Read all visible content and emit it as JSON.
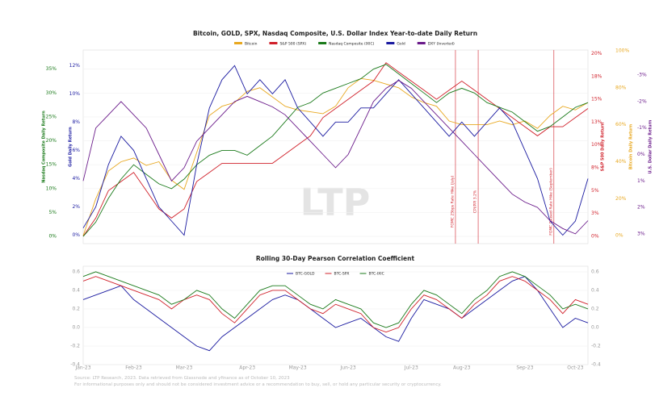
{
  "chart_data": [
    {
      "type": "line",
      "title": "Bitcoin, GOLD, SPX, Nasdaq Composite, U.S. Dollar Index Year-to-date Daily Return",
      "watermark": "LTP",
      "ylabel": "Nasdaq Composite Daily Return",
      "y2label": "Gold Daily Return",
      "y3label": "S&P 500 Daily Return",
      "y4label": "Bitcoin Daily Return",
      "y5label": "U.S. Dollar Daily Return",
      "ylim": [
        -1.5,
        39
      ],
      "yticks": [
        {
          "value": 0,
          "label": "0%"
        },
        {
          "value": 5,
          "label": "5%"
        },
        {
          "value": 10,
          "label": "10%"
        },
        {
          "value": 15,
          "label": "15%"
        },
        {
          "value": 20,
          "label": "20%"
        },
        {
          "value": 25,
          "label": "25%"
        },
        {
          "value": 30,
          "label": "30%"
        },
        {
          "value": 35,
          "label": "35%"
        }
      ],
      "y2lim": [
        -0.6,
        13.1
      ],
      "y2ticks": [
        {
          "value": 0,
          "label": "0%"
        },
        {
          "value": 2,
          "label": "2%"
        },
        {
          "value": 4,
          "label": "4%"
        },
        {
          "value": 6,
          "label": "6%"
        },
        {
          "value": 8,
          "label": "8%"
        },
        {
          "value": 10,
          "label": "10%"
        },
        {
          "value": 12,
          "label": "12%"
        }
      ],
      "y3lim": [
        -0.8,
        20.4
      ],
      "y3ticks": [
        {
          "value": 0,
          "label": "0%"
        },
        {
          "value": 2.5,
          "label": "3%"
        },
        {
          "value": 5,
          "label": "5%"
        },
        {
          "value": 7.5,
          "label": "8%"
        },
        {
          "value": 10,
          "label": "10%"
        },
        {
          "value": 12.5,
          "label": "13%"
        },
        {
          "value": 15,
          "label": "15%"
        },
        {
          "value": 17.5,
          "label": "18%"
        },
        {
          "value": 20,
          "label": "20%"
        }
      ],
      "y4lim": [
        -4.3,
        100.4
      ],
      "y4ticks": [
        {
          "value": 0,
          "label": "0%"
        },
        {
          "value": 20,
          "label": "20%"
        },
        {
          "value": 40,
          "label": "40%"
        },
        {
          "value": 60,
          "label": "60%"
        },
        {
          "value": 80,
          "label": "80%"
        },
        {
          "value": 100,
          "label": "100%"
        }
      ],
      "y5lim": [
        -3.95,
        3.37
      ],
      "y5_inverted": true,
      "y5ticks": [
        {
          "value": -3,
          "label": "-3%"
        },
        {
          "value": -2,
          "label": "-2%"
        },
        {
          "value": -1,
          "label": "-1%"
        },
        {
          "value": 0,
          "label": "0%"
        },
        {
          "value": 1,
          "label": "1%"
        },
        {
          "value": 2,
          "label": "2%"
        },
        {
          "value": 3,
          "label": "3%"
        }
      ],
      "grid": true,
      "series": [
        {
          "name": "Bitcoin",
          "color": "#e8a820",
          "axis": "y4",
          "values": [
            0,
            20,
            35,
            40,
            42,
            38,
            40,
            30,
            25,
            45,
            65,
            70,
            72,
            78,
            80,
            75,
            70,
            68,
            67,
            66,
            70,
            80,
            85,
            84,
            82,
            80,
            75,
            72,
            70,
            62,
            60,
            60,
            60,
            62,
            60,
            62,
            58,
            65,
            70,
            68,
            72
          ]
        },
        {
          "name": "S&P 500 (SPX)",
          "color": "#d0202a",
          "axis": "y3",
          "values": [
            0,
            2,
            5,
            6,
            7,
            5,
            3,
            2,
            3,
            6,
            7,
            8,
            8,
            8,
            8,
            8,
            9,
            10,
            11,
            13,
            14,
            15,
            16,
            17,
            19,
            18,
            17,
            16,
            15,
            16,
            17,
            16,
            15,
            14,
            13,
            12,
            11,
            12,
            12,
            13,
            14
          ]
        },
        {
          "name": "Nasdaq Composite (IXIC)",
          "color": "#1a7a1a",
          "axis": "y",
          "values": [
            0,
            3,
            8,
            12,
            15,
            13,
            11,
            10,
            12,
            15,
            17,
            18,
            18,
            17,
            19,
            21,
            24,
            27,
            28,
            30,
            31,
            32,
            33,
            35,
            36,
            34,
            32,
            30,
            28,
            30,
            31,
            30,
            28,
            27,
            26,
            24,
            22,
            23,
            25,
            27,
            28
          ]
        },
        {
          "name": "Gold",
          "color": "#1a1aa0",
          "axis": "y2",
          "values": [
            0.5,
            2,
            5,
            7,
            6,
            4,
            2,
            1,
            0,
            5,
            9,
            11,
            12,
            10,
            11,
            10,
            11,
            9,
            8,
            7,
            8,
            8,
            9,
            9,
            10,
            11,
            10,
            9,
            8,
            7,
            8,
            7,
            8,
            9,
            8,
            6,
            4,
            1,
            0,
            1,
            4
          ]
        },
        {
          "name": "DXY (Inverted)",
          "color": "#6a1a8a",
          "axis": "y5",
          "values": [
            1,
            -1,
            -1.5,
            -2,
            -1.5,
            -1,
            0,
            1,
            0.5,
            -0.5,
            -1,
            -1.5,
            -2,
            -2.2,
            -2,
            -1.8,
            -1.5,
            -1,
            -0.5,
            0,
            0.5,
            0,
            -1,
            -2,
            -2.5,
            -2.8,
            -2.5,
            -2,
            -1.5,
            -1,
            -0.5,
            0,
            0.5,
            1,
            1.5,
            1.8,
            2,
            2.5,
            2.8,
            3,
            2.5
          ]
        }
      ],
      "annotations": [
        "FOMC 25bps Rate Hike (July)",
        "CPI/PPI 3.2%",
        "FOMC Paused Rate Hike (September)"
      ]
    },
    {
      "type": "line",
      "title": "Rolling 30-Day Pearson Correlation Coefficient",
      "categories": [
        "Jan-23",
        null,
        null,
        null,
        "Feb-23",
        null,
        null,
        null,
        "Mar-23",
        null,
        null,
        null,
        null,
        "Apr-23",
        null,
        null,
        null,
        "May-23",
        null,
        null,
        null,
        "Jun-23",
        null,
        null,
        null,
        null,
        "Jul-23",
        null,
        null,
        null,
        "Aug-23",
        null,
        null,
        null,
        null,
        "Sep-23",
        null,
        null,
        null,
        "Oct-23",
        null
      ],
      "ylim": [
        -0.4,
        0.66
      ],
      "yticks": [
        -0.4,
        -0.2,
        {
          "value": 0,
          "label": "0.0"
        },
        0.2,
        0.4,
        0.6
      ],
      "grid": true,
      "series": [
        {
          "name": "BTC-GOLD",
          "color": "#1a1aa0",
          "values": [
            0.3,
            0.35,
            0.4,
            0.45,
            0.3,
            0.2,
            0.1,
            0.0,
            -0.1,
            -0.2,
            -0.25,
            -0.1,
            0.0,
            0.1,
            0.2,
            0.3,
            0.35,
            0.3,
            0.2,
            0.1,
            0.0,
            0.05,
            0.1,
            0.0,
            -0.1,
            -0.15,
            0.1,
            0.3,
            0.25,
            0.2,
            0.1,
            0.2,
            0.3,
            0.4,
            0.5,
            0.55,
            0.4,
            0.2,
            0.0,
            0.1,
            0.05
          ]
        },
        {
          "name": "BTC-SPX",
          "color": "#d0202a",
          "values": [
            0.5,
            0.55,
            0.5,
            0.45,
            0.4,
            0.35,
            0.3,
            0.2,
            0.3,
            0.35,
            0.3,
            0.15,
            0.05,
            0.2,
            0.35,
            0.4,
            0.4,
            0.3,
            0.2,
            0.15,
            0.25,
            0.2,
            0.15,
            0.0,
            -0.05,
            0.0,
            0.2,
            0.35,
            0.3,
            0.2,
            0.1,
            0.25,
            0.35,
            0.5,
            0.55,
            0.5,
            0.4,
            0.3,
            0.15,
            0.3,
            0.25
          ]
        },
        {
          "name": "BTC-IXIC",
          "color": "#1a7a1a",
          "values": [
            0.55,
            0.6,
            0.55,
            0.5,
            0.45,
            0.4,
            0.35,
            0.25,
            0.3,
            0.4,
            0.35,
            0.2,
            0.1,
            0.25,
            0.4,
            0.45,
            0.45,
            0.35,
            0.25,
            0.2,
            0.3,
            0.25,
            0.2,
            0.05,
            0.0,
            0.05,
            0.25,
            0.4,
            0.35,
            0.25,
            0.15,
            0.3,
            0.4,
            0.55,
            0.6,
            0.55,
            0.45,
            0.35,
            0.2,
            0.25,
            0.2
          ]
        }
      ]
    }
  ],
  "footer": [
    "Source: LTP Research, 2023. Data retrieved from Glassnode and yfinance as of October 10, 2023",
    "For informational purposes only and should not be considered investment advice or a recommendation to buy, sell, or hold any particular security or cryptocurrency."
  ]
}
